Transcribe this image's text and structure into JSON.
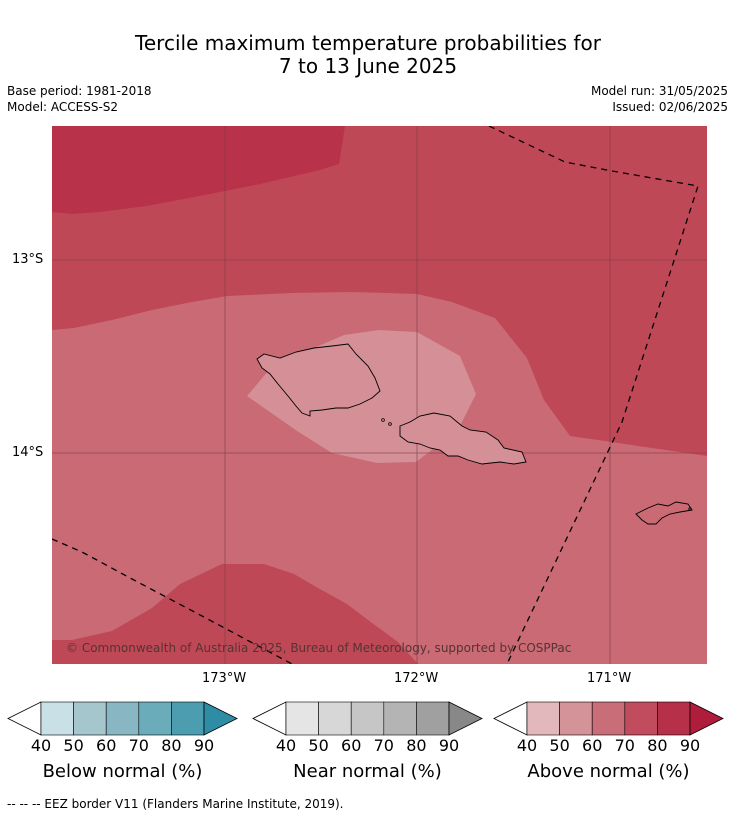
{
  "title_line1": "Tercile maximum temperature probabilities for",
  "title_line2": "7 to 13 June 2025",
  "base_period": "Base period: 1981-2018",
  "model": "Model: ACCESS-S2",
  "model_run": "Model run: 31/05/2025",
  "issued": "Issued: 02/06/2025",
  "map": {
    "lat_labels": [
      "13°S",
      "14°S"
    ],
    "lon_labels": [
      "173°W",
      "172°W",
      "171°W"
    ],
    "copyright": "© Commonwealth of Australia 2025, Bureau of Meteorology, supported by COSPPac",
    "colors": {
      "above_60_70": "#c96a75",
      "above_70_80": "#bf4857",
      "above_80_90": "#b8324a",
      "above_50_60": "#d48f97"
    }
  },
  "colorbars": [
    {
      "title": "Below normal (%)",
      "ticks": [
        "40",
        "50",
        "60",
        "70",
        "80",
        "90"
      ],
      "colors": [
        "#ffffff",
        "#c9e0e6",
        "#a5c6cd",
        "#88b7c3",
        "#6aacb9",
        "#4b9daf",
        "#2e8da4"
      ]
    },
    {
      "title": "Near normal (%)",
      "ticks": [
        "40",
        "50",
        "60",
        "70",
        "80",
        "90"
      ],
      "colors": [
        "#ffffff",
        "#e5e5e5",
        "#d7d7d7",
        "#c6c6c6",
        "#b4b4b4",
        "#a0a0a0",
        "#888888"
      ]
    },
    {
      "title": "Above normal (%)",
      "ticks": [
        "40",
        "50",
        "60",
        "70",
        "80",
        "90"
      ],
      "colors": [
        "#ffffff",
        "#e3b8bc",
        "#d49299",
        "#c96d78",
        "#c04c5d",
        "#b73049",
        "#b01d3c"
      ]
    }
  ],
  "footnote": "--  --  -- EEZ border V11 (Flanders Marine Institute, 2019)."
}
